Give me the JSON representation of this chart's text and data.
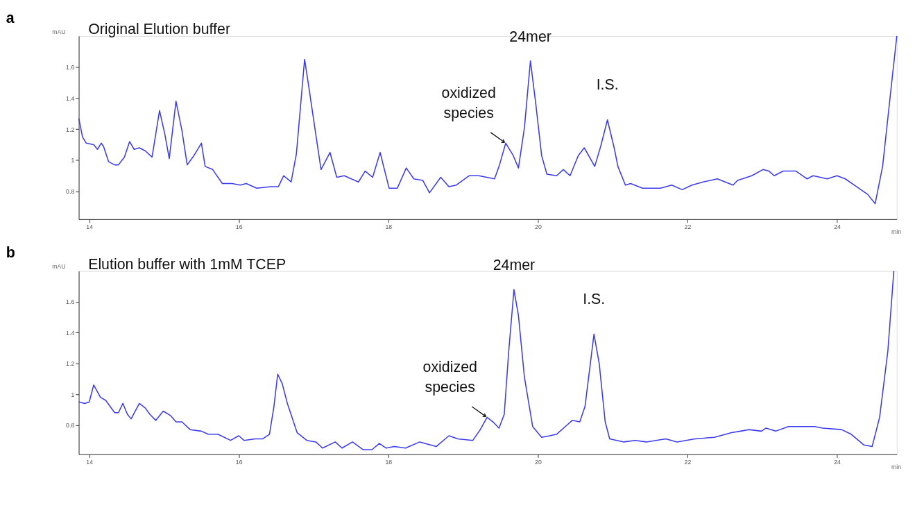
{
  "chart_data": [
    {
      "type": "line",
      "title": "a",
      "xlabel": "min",
      "ylabel": "mAU",
      "xlim": [
        13.86,
        24.8
      ],
      "ylim": [
        0.62,
        1.8
      ],
      "xticks": [
        14,
        16,
        18,
        20,
        22,
        24
      ],
      "yticks": [
        0.8,
        1,
        1.2,
        1.4,
        1.6
      ],
      "grid": false,
      "marker": "none",
      "line_style": "solid",
      "annotations": [
        "Original Elution buffer",
        {
          "text": "oxidized species",
          "x": 19.57,
          "y": 1.11
        },
        {
          "text": "24mer",
          "x": 19.9,
          "y": 1.64
        },
        {
          "text": "I.S.",
          "x": 20.93,
          "y": 1.26
        }
      ],
      "series": [
        {
          "color": "#3b3bf0",
          "x": [
            13.86,
            13.91,
            13.96,
            14.06,
            14.11,
            14.16,
            14.19,
            14.26,
            14.34,
            14.39,
            14.47,
            14.54,
            14.6,
            14.67,
            14.75,
            14.84,
            14.94,
            15.01,
            15.07,
            15.16,
            15.24,
            15.31,
            15.4,
            15.5,
            15.55,
            15.65,
            15.78,
            15.91,
            16.02,
            16.1,
            16.24,
            16.43,
            16.53,
            16.6,
            16.7,
            16.77,
            16.88,
            16.94,
            17.01,
            17.1,
            17.22,
            17.31,
            17.41,
            17.6,
            17.69,
            17.79,
            17.89,
            18.01,
            18.12,
            18.24,
            18.34,
            18.46,
            18.55,
            18.7,
            18.81,
            18.91,
            19.08,
            19.21,
            19.42,
            19.48,
            19.57,
            19.67,
            19.74,
            19.82,
            19.9,
            19.97,
            20.05,
            20.12,
            20.25,
            20.34,
            20.43,
            20.54,
            20.62,
            20.76,
            20.84,
            20.93,
            21.02,
            21.07,
            21.17,
            21.24,
            21.4,
            21.64,
            21.79,
            21.93,
            22.06,
            22.21,
            22.4,
            22.61,
            22.67,
            22.86,
            23.01,
            23.09,
            23.16,
            23.28,
            23.45,
            23.6,
            23.68,
            23.87,
            24.0,
            24.11,
            24.26,
            24.41,
            24.51,
            24.61,
            24.72,
            24.8
          ],
          "values": [
            1.27,
            1.15,
            1.11,
            1.1,
            1.07,
            1.11,
            1.09,
            0.99,
            0.97,
            0.97,
            1.02,
            1.12,
            1.07,
            1.08,
            1.06,
            1.02,
            1.32,
            1.17,
            1.01,
            1.38,
            1.19,
            0.97,
            1.03,
            1.11,
            0.96,
            0.94,
            0.85,
            0.85,
            0.84,
            0.85,
            0.82,
            0.83,
            0.83,
            0.9,
            0.86,
            1.04,
            1.65,
            1.46,
            1.23,
            0.94,
            1.05,
            0.89,
            0.9,
            0.86,
            0.93,
            0.89,
            1.05,
            0.82,
            0.82,
            0.95,
            0.88,
            0.87,
            0.79,
            0.89,
            0.83,
            0.84,
            0.9,
            0.9,
            0.88,
            0.96,
            1.11,
            1.03,
            0.95,
            1.21,
            1.64,
            1.37,
            1.03,
            0.91,
            0.9,
            0.94,
            0.9,
            1.03,
            1.08,
            0.96,
            1.09,
            1.26,
            1.08,
            0.96,
            0.84,
            0.85,
            0.82,
            0.82,
            0.84,
            0.81,
            0.84,
            0.86,
            0.88,
            0.84,
            0.87,
            0.9,
            0.94,
            0.93,
            0.9,
            0.93,
            0.93,
            0.88,
            0.9,
            0.88,
            0.9,
            0.88,
            0.83,
            0.78,
            0.72,
            0.96,
            1.45,
            1.8
          ]
        }
      ]
    },
    {
      "type": "line",
      "title": "b",
      "xlabel": "min",
      "ylabel": "mAU",
      "xlim": [
        13.86,
        24.8
      ],
      "ylim": [
        0.61,
        1.8
      ],
      "xticks": [
        14,
        16,
        18,
        20,
        22,
        24
      ],
      "yticks": [
        0.8,
        1,
        1.2,
        1.4,
        1.6
      ],
      "grid": false,
      "marker": "none",
      "line_style": "solid",
      "annotations": [
        "Elution buffer with 1mM TCEP",
        {
          "text": "oxidized species",
          "x": 19.32,
          "y": 0.85
        },
        {
          "text": "24mer",
          "x": 19.68,
          "y": 1.68
        },
        {
          "text": "I.S.",
          "x": 20.75,
          "y": 1.39
        }
      ],
      "series": [
        {
          "color": "#3b3bf0",
          "x": [
            13.86,
            13.94,
            14.0,
            14.06,
            14.15,
            14.22,
            14.34,
            14.39,
            14.45,
            14.51,
            14.56,
            14.67,
            14.75,
            14.81,
            14.89,
            14.99,
            15.09,
            15.16,
            15.24,
            15.35,
            15.5,
            15.59,
            15.72,
            15.89,
            16.0,
            16.07,
            16.22,
            16.32,
            16.41,
            16.47,
            16.52,
            16.58,
            16.65,
            16.78,
            16.91,
            17.03,
            17.12,
            17.29,
            17.38,
            17.52,
            17.66,
            17.78,
            17.88,
            17.97,
            18.08,
            18.23,
            18.42,
            18.64,
            18.81,
            18.93,
            19.13,
            19.23,
            19.32,
            19.4,
            19.48,
            19.55,
            19.61,
            19.68,
            19.74,
            19.82,
            19.93,
            20.05,
            20.16,
            20.25,
            20.39,
            20.46,
            20.56,
            20.63,
            20.75,
            20.82,
            20.9,
            20.96,
            21.15,
            21.3,
            21.45,
            21.71,
            21.86,
            22.1,
            22.36,
            22.59,
            22.71,
            22.82,
            22.99,
            23.05,
            23.18,
            23.35,
            23.7,
            23.81,
            24.06,
            24.19,
            24.36,
            24.47,
            24.57,
            24.68,
            24.76
          ],
          "values": [
            0.95,
            0.94,
            0.95,
            1.06,
            0.98,
            0.96,
            0.88,
            0.88,
            0.94,
            0.87,
            0.84,
            0.94,
            0.91,
            0.87,
            0.83,
            0.89,
            0.86,
            0.82,
            0.82,
            0.77,
            0.76,
            0.74,
            0.74,
            0.7,
            0.73,
            0.7,
            0.71,
            0.71,
            0.74,
            0.92,
            1.13,
            1.07,
            0.94,
            0.75,
            0.7,
            0.69,
            0.65,
            0.69,
            0.65,
            0.69,
            0.64,
            0.64,
            0.68,
            0.65,
            0.66,
            0.65,
            0.69,
            0.66,
            0.73,
            0.71,
            0.7,
            0.77,
            0.85,
            0.82,
            0.78,
            0.87,
            1.28,
            1.68,
            1.51,
            1.11,
            0.79,
            0.72,
            0.73,
            0.74,
            0.8,
            0.83,
            0.82,
            0.92,
            1.39,
            1.2,
            0.82,
            0.71,
            0.69,
            0.7,
            0.69,
            0.71,
            0.69,
            0.71,
            0.72,
            0.75,
            0.76,
            0.77,
            0.76,
            0.78,
            0.76,
            0.79,
            0.79,
            0.78,
            0.77,
            0.74,
            0.67,
            0.66,
            0.85,
            1.28,
            1.8
          ]
        }
      ]
    }
  ]
}
